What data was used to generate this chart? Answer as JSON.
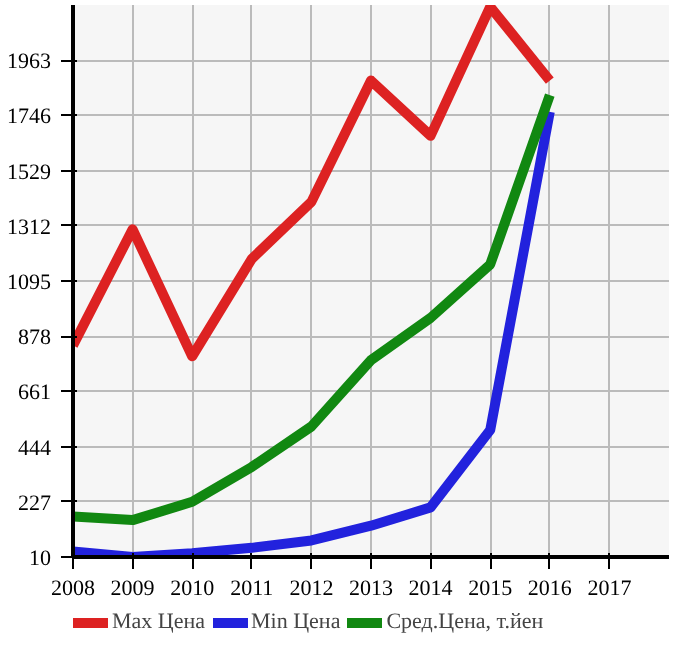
{
  "chart_data": {
    "type": "line",
    "x": [
      2008,
      2009,
      2010,
      2011,
      2012,
      2013,
      2014,
      2015,
      2016
    ],
    "series": [
      {
        "name": "Max Цена",
        "color": "#dd2222",
        "values": [
          842,
          1298,
          799,
          1182,
          1406,
          1883,
          1666,
          2173,
          1883
        ]
      },
      {
        "name": "Min Цена",
        "color": "#2222dd",
        "values": [
          32,
          10,
          25,
          46,
          75,
          133,
          205,
          509,
          1760
        ]
      },
      {
        "name": "Сред.Цена, т.йен",
        "color": "#118811",
        "values": [
          169,
          155,
          227,
          364,
          523,
          784,
          950,
          1160,
          1826
        ]
      }
    ],
    "xlim": [
      2008,
      2018
    ],
    "ylim": [
      10,
      2180
    ],
    "xticks": [
      2008,
      2009,
      2010,
      2011,
      2012,
      2013,
      2014,
      2015,
      2016,
      2017
    ],
    "yticks": [
      10,
      227,
      444,
      661,
      878,
      1095,
      1312,
      1529,
      1746,
      1963
    ],
    "grid": true,
    "legend": "bottom",
    "marker": "none",
    "line_style": "solid"
  }
}
